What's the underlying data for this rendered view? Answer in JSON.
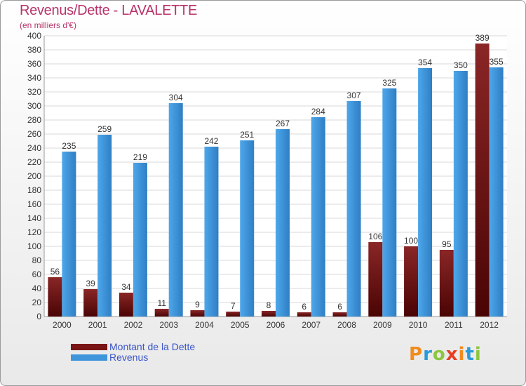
{
  "chart_data": {
    "type": "bar",
    "title": "Revenus/Dette - LAVALETTE",
    "subtitle": "(en milliers d'€)",
    "categories": [
      "2000",
      "2001",
      "2002",
      "2003",
      "2004",
      "2005",
      "2006",
      "2007",
      "2008",
      "2009",
      "2010",
      "2011",
      "2012"
    ],
    "series": [
      {
        "name": "Montant de la Dette",
        "color": "#7a1515",
        "values": [
          56,
          39,
          34,
          11,
          9,
          7,
          8,
          6,
          6,
          106,
          100,
          95,
          389
        ]
      },
      {
        "name": "Revenus",
        "color": "#3f95dc",
        "values": [
          235,
          259,
          219,
          304,
          242,
          251,
          267,
          284,
          307,
          325,
          354,
          350,
          355
        ]
      }
    ],
    "ylim": [
      0,
      400
    ],
    "ytick_step": 20,
    "grid": true,
    "legend_position": "bottom-left"
  },
  "brand": {
    "letters": [
      "P",
      "r",
      "o",
      "x",
      "i",
      "t",
      "i"
    ],
    "colors": [
      "#f08c1e",
      "#2b9bd6",
      "#8cc63f",
      "#e63f24",
      "#f08c1e",
      "#2b9bd6",
      "#8cc63f"
    ]
  }
}
